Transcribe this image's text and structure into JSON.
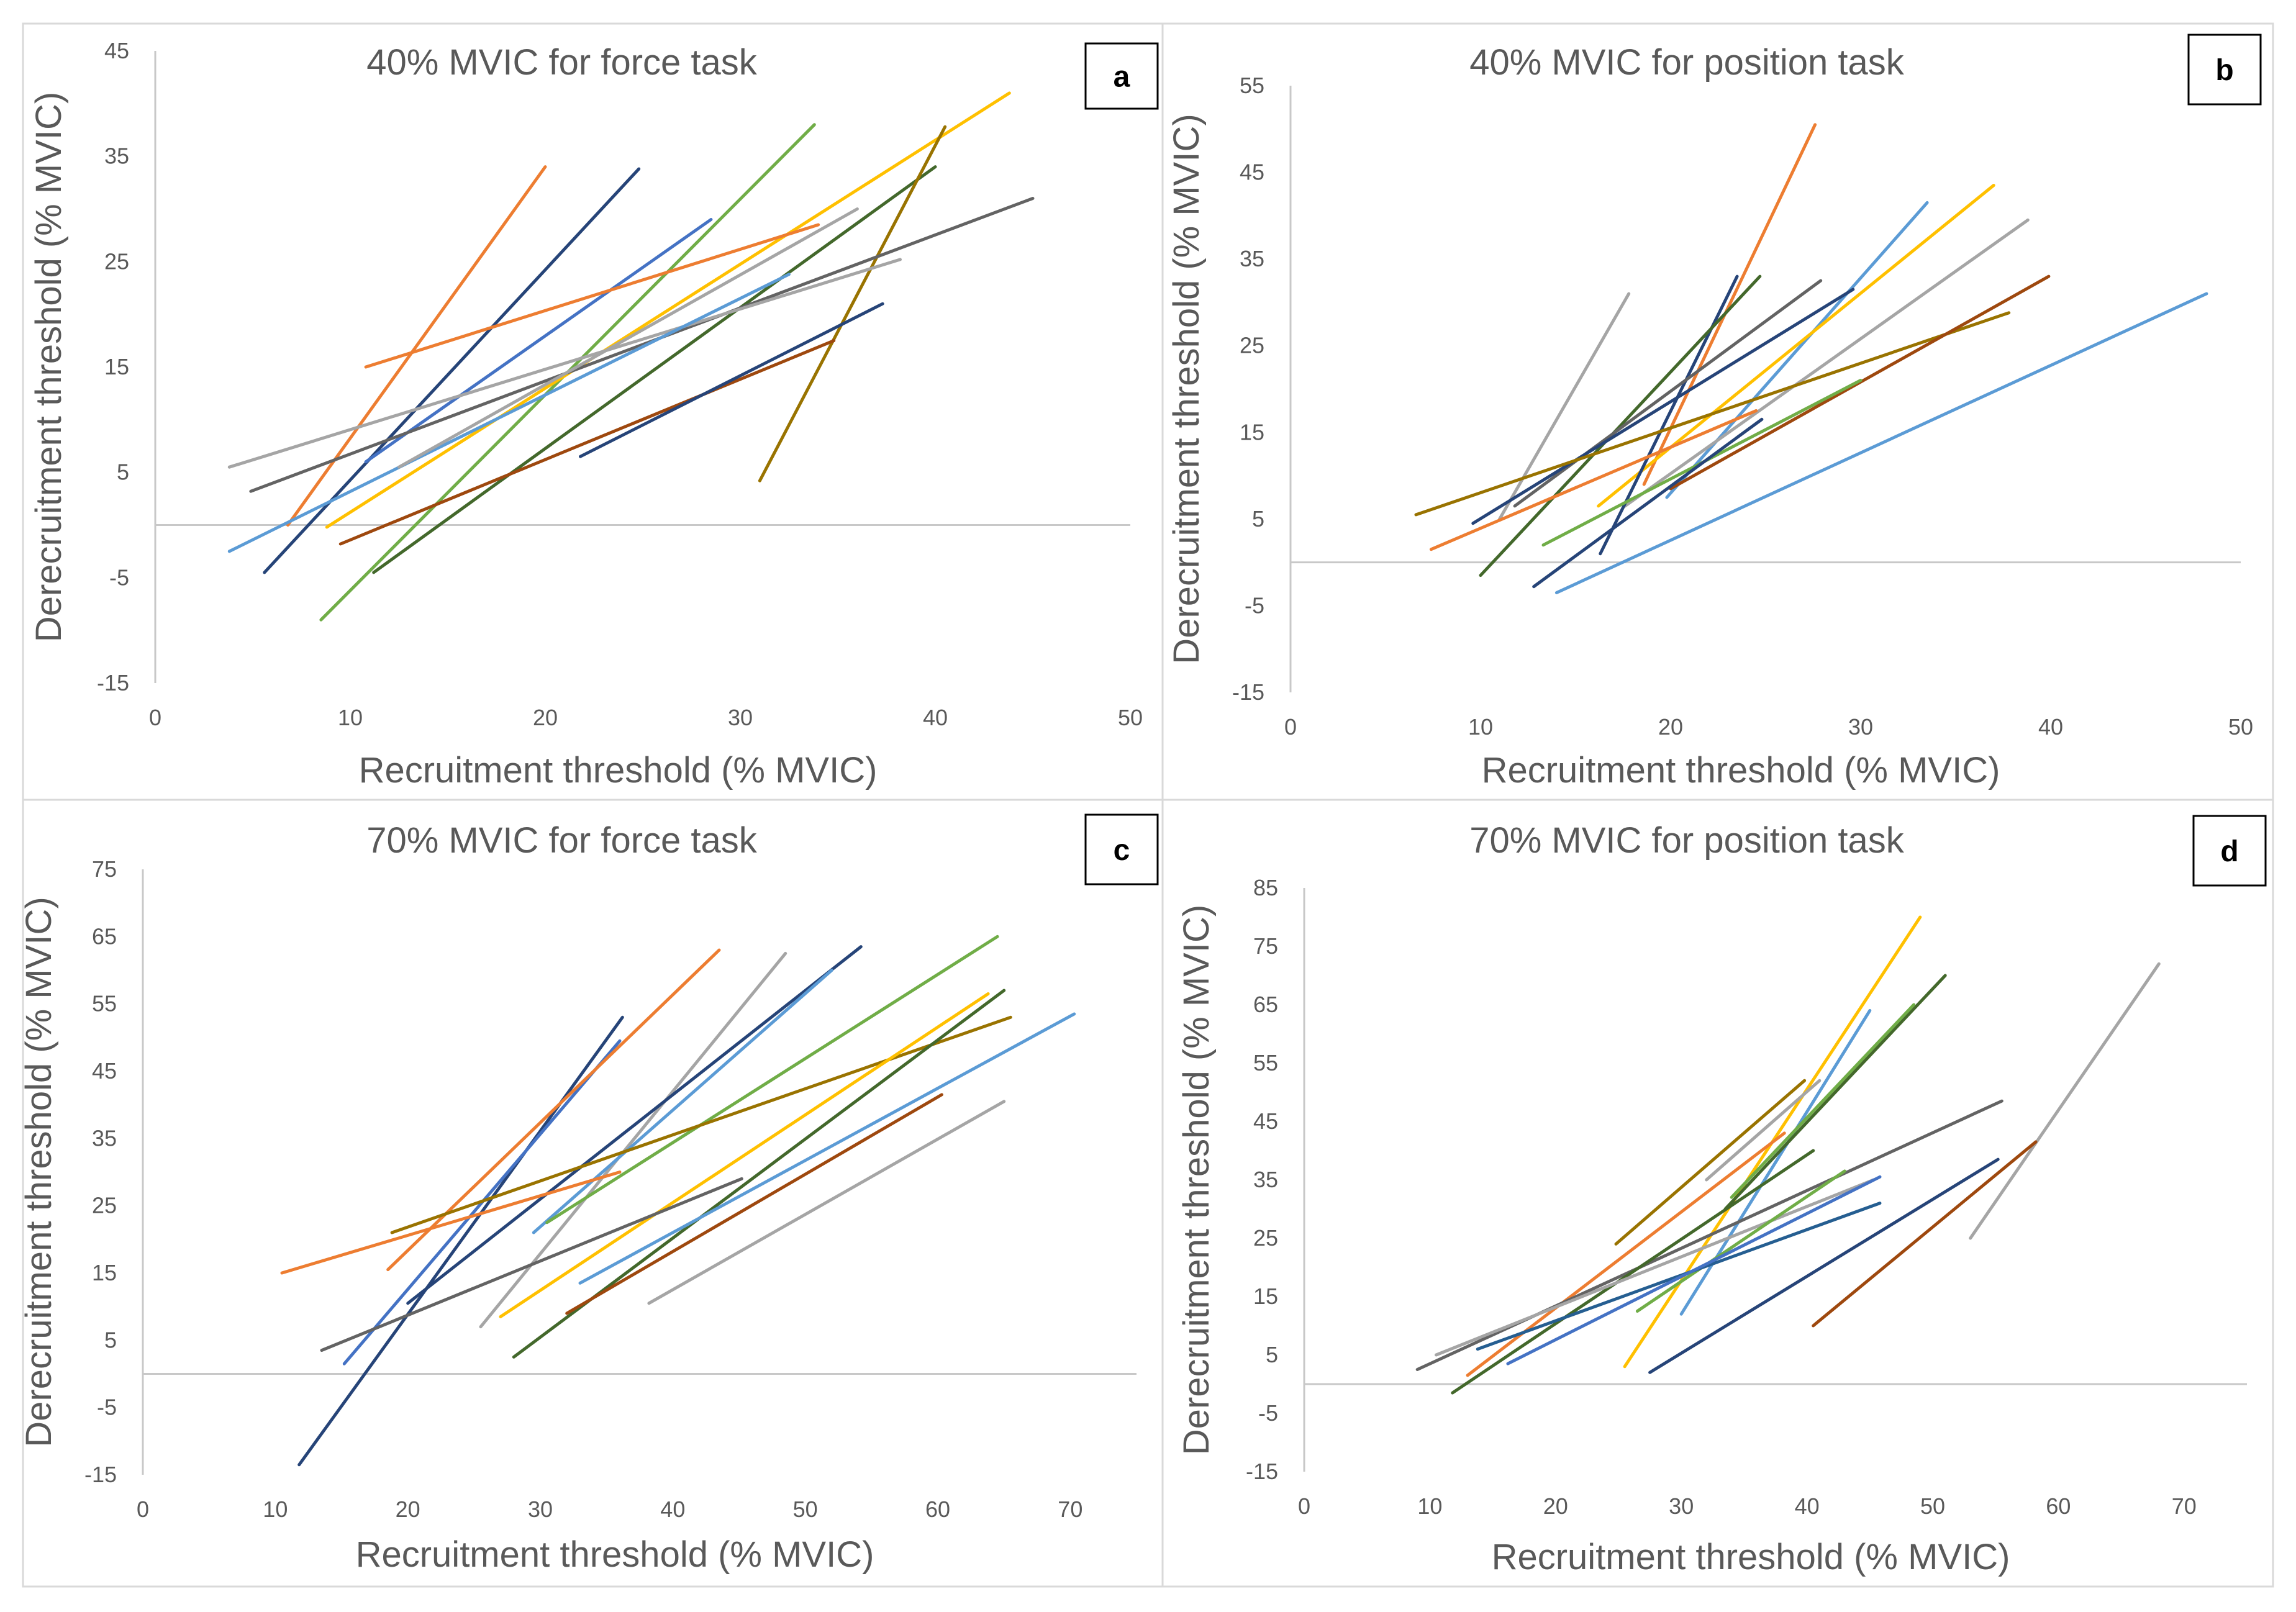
{
  "figure": {
    "colors": {
      "axis": "#c8c8c8",
      "text": "#595959",
      "border": "#d9d9d9",
      "palette": [
        "#4472c4",
        "#ed7d31",
        "#a5a5a5",
        "#ffc000",
        "#5b9bd5",
        "#70ad47",
        "#264478",
        "#9e480e",
        "#636363",
        "#997300",
        "#255e91",
        "#43682b"
      ]
    }
  },
  "chart_data": [
    {
      "panel": "a",
      "type": "line",
      "title": "40% MVIC for force task",
      "xlabel": "Recruitment threshold (% MVIC)",
      "ylabel": "Derecruitment threshold (% MVIC)",
      "xlim": [
        0,
        50
      ],
      "ylim": [
        -15,
        45
      ],
      "xticks": [
        0,
        10,
        20,
        30,
        40,
        50
      ],
      "yticks": [
        -15,
        -5,
        5,
        15,
        25,
        35,
        45
      ],
      "series": [
        {
          "color": "#ed7d31",
          "x": [
            6.8,
            20.0
          ],
          "y": [
            0.0,
            34.0
          ]
        },
        {
          "color": "#264478",
          "x": [
            5.6,
            24.8
          ],
          "y": [
            -4.5,
            33.8
          ]
        },
        {
          "color": "#4472c4",
          "x": [
            10.8,
            28.5
          ],
          "y": [
            6.0,
            29.0
          ]
        },
        {
          "color": "#70ad47",
          "x": [
            8.5,
            33.8
          ],
          "y": [
            -9.0,
            38.0
          ]
        },
        {
          "color": "#ffc000",
          "x": [
            8.8,
            43.8
          ],
          "y": [
            -0.2,
            41.0
          ]
        },
        {
          "color": "#43682b",
          "x": [
            11.2,
            40.0
          ],
          "y": [
            -4.5,
            34.0
          ]
        },
        {
          "color": "#997300",
          "x": [
            31.0,
            40.5
          ],
          "y": [
            4.2,
            37.8
          ]
        },
        {
          "color": "#ed7d31",
          "x": [
            10.8,
            34.0
          ],
          "y": [
            15.0,
            28.5
          ]
        },
        {
          "color": "#636363",
          "x": [
            4.9,
            45.0
          ],
          "y": [
            3.2,
            31.0
          ]
        },
        {
          "color": "#a5a5a5",
          "x": [
            3.8,
            38.2
          ],
          "y": [
            5.5,
            25.2
          ]
        },
        {
          "color": "#5b9bd5",
          "x": [
            3.8,
            32.5
          ],
          "y": [
            -2.5,
            23.8
          ]
        },
        {
          "color": "#a5a5a5",
          "x": [
            12.5,
            36.0
          ],
          "y": [
            5.5,
            30.0
          ]
        },
        {
          "color": "#9e480e",
          "x": [
            9.5,
            34.8
          ],
          "y": [
            -1.8,
            17.5
          ]
        },
        {
          "color": "#264478",
          "x": [
            21.8,
            37.3
          ],
          "y": [
            6.5,
            21.0
          ]
        }
      ]
    },
    {
      "panel": "b",
      "type": "line",
      "title": "40% MVIC for position task",
      "xlabel": "Recruitment threshold (% MVIC)",
      "ylabel": "Derecruitment threshold (% MVIC)",
      "xlim": [
        0,
        50
      ],
      "ylim": [
        -15,
        55
      ],
      "xticks": [
        0,
        10,
        20,
        30,
        40,
        50
      ],
      "yticks": [
        -15,
        -5,
        5,
        15,
        25,
        35,
        45,
        55
      ],
      "series": [
        {
          "color": "#a5a5a5",
          "x": [
            11.0,
            17.8
          ],
          "y": [
            5.0,
            31.0
          ]
        },
        {
          "color": "#ed7d31",
          "x": [
            18.6,
            27.6
          ],
          "y": [
            9.0,
            50.5
          ]
        },
        {
          "color": "#5b9bd5",
          "x": [
            19.8,
            33.5
          ],
          "y": [
            7.5,
            41.5
          ]
        },
        {
          "color": "#ffc000",
          "x": [
            16.2,
            37.0
          ],
          "y": [
            6.5,
            43.5
          ]
        },
        {
          "color": "#a5a5a5",
          "x": [
            17.6,
            38.8
          ],
          "y": [
            6.5,
            39.5
          ]
        },
        {
          "color": "#264478",
          "x": [
            16.3,
            23.5
          ],
          "y": [
            1.0,
            33.0
          ]
        },
        {
          "color": "#43682b",
          "x": [
            10.0,
            24.7
          ],
          "y": [
            -1.5,
            33.0
          ]
        },
        {
          "color": "#636363",
          "x": [
            11.8,
            27.9
          ],
          "y": [
            6.5,
            32.5
          ]
        },
        {
          "color": "#264478",
          "x": [
            9.6,
            29.6
          ],
          "y": [
            4.5,
            31.5
          ]
        },
        {
          "color": "#997300",
          "x": [
            6.6,
            37.8
          ],
          "y": [
            5.5,
            28.8
          ]
        },
        {
          "color": "#9e480e",
          "x": [
            20.0,
            39.9
          ],
          "y": [
            8.5,
            33.0
          ]
        },
        {
          "color": "#5b9bd5",
          "x": [
            14.0,
            48.2
          ],
          "y": [
            -3.5,
            31.0
          ]
        },
        {
          "color": "#70ad47",
          "x": [
            13.3,
            30.0
          ],
          "y": [
            2.0,
            21.0
          ]
        },
        {
          "color": "#ed7d31",
          "x": [
            7.4,
            24.5
          ],
          "y": [
            1.5,
            17.5
          ]
        },
        {
          "color": "#264478",
          "x": [
            12.8,
            24.8
          ],
          "y": [
            -2.8,
            16.5
          ]
        }
      ]
    },
    {
      "panel": "c",
      "type": "line",
      "title": "70% MVIC for force task",
      "xlabel": "Recruitment threshold (% MVIC)",
      "ylabel": "Derecruitment threshold (% MVIC)",
      "xlim": [
        0,
        75
      ],
      "ylim": [
        -15,
        75
      ],
      "xticks": [
        0,
        10,
        20,
        30,
        40,
        50,
        60,
        70
      ],
      "yticks": [
        -15,
        -5,
        5,
        15,
        25,
        35,
        45,
        55,
        65,
        75
      ],
      "series": [
        {
          "color": "#264478",
          "x": [
            11.8,
            36.2
          ],
          "y": [
            -13.5,
            53.0
          ]
        },
        {
          "color": "#4472c4",
          "x": [
            15.2,
            36.0
          ],
          "y": [
            1.5,
            49.5
          ]
        },
        {
          "color": "#ed7d31",
          "x": [
            18.5,
            43.5
          ],
          "y": [
            15.5,
            63.0
          ]
        },
        {
          "color": "#a5a5a5",
          "x": [
            25.5,
            48.5
          ],
          "y": [
            7.0,
            62.5
          ]
        },
        {
          "color": "#264478",
          "x": [
            20.0,
            54.2
          ],
          "y": [
            10.5,
            63.5
          ]
        },
        {
          "color": "#5b9bd5",
          "x": [
            29.5,
            52.0
          ],
          "y": [
            21.0,
            60.0
          ]
        },
        {
          "color": "#70ad47",
          "x": [
            30.5,
            64.5
          ],
          "y": [
            22.5,
            65.0
          ]
        },
        {
          "color": "#997300",
          "x": [
            18.8,
            65.5
          ],
          "y": [
            21.0,
            53.0
          ]
        },
        {
          "color": "#ed7d31",
          "x": [
            10.5,
            36.0
          ],
          "y": [
            15.0,
            30.0
          ]
        },
        {
          "color": "#ffc000",
          "x": [
            27.0,
            63.8
          ],
          "y": [
            8.5,
            56.5
          ]
        },
        {
          "color": "#43682b",
          "x": [
            28.0,
            65.0
          ],
          "y": [
            2.5,
            57.0
          ]
        },
        {
          "color": "#5b9bd5",
          "x": [
            33.0,
            70.3
          ],
          "y": [
            13.5,
            53.5
          ]
        },
        {
          "color": "#9e480e",
          "x": [
            32.0,
            60.3
          ],
          "y": [
            9.0,
            41.5
          ]
        },
        {
          "color": "#a5a5a5",
          "x": [
            38.2,
            65.0
          ],
          "y": [
            10.5,
            40.5
          ]
        },
        {
          "color": "#636363",
          "x": [
            13.5,
            45.2
          ],
          "y": [
            3.5,
            29.0
          ]
        }
      ]
    },
    {
      "panel": "d",
      "type": "line",
      "title": "70% MVIC for position task",
      "xlabel": "Recruitment threshold (% MVIC)",
      "ylabel": "Derecruitment threshold (% MVIC)",
      "xlim": [
        0,
        75
      ],
      "ylim": [
        -15,
        85
      ],
      "xticks": [
        0,
        10,
        20,
        30,
        40,
        50,
        60,
        70
      ],
      "yticks": [
        -15,
        -5,
        5,
        15,
        25,
        35,
        45,
        55,
        65,
        75,
        85
      ],
      "series": [
        {
          "color": "#ffc000",
          "x": [
            25.5,
            49.0
          ],
          "y": [
            3.0,
            80.0
          ]
        },
        {
          "color": "#5b9bd5",
          "x": [
            30.0,
            45.0
          ],
          "y": [
            12.0,
            64.0
          ]
        },
        {
          "color": "#43682b",
          "x": [
            33.5,
            51.0
          ],
          "y": [
            30.0,
            70.0
          ]
        },
        {
          "color": "#70ad47",
          "x": [
            34.0,
            48.5
          ],
          "y": [
            32.0,
            65.0
          ]
        },
        {
          "color": "#a5a5a5",
          "x": [
            32.0,
            41.0
          ],
          "y": [
            35.0,
            52.0
          ]
        },
        {
          "color": "#997300",
          "x": [
            24.8,
            39.8
          ],
          "y": [
            24.0,
            52.0
          ]
        },
        {
          "color": "#ed7d31",
          "x": [
            13.0,
            38.2
          ],
          "y": [
            1.5,
            43.0
          ]
        },
        {
          "color": "#a5a5a5",
          "x": [
            53.0,
            68.0
          ],
          "y": [
            25.0,
            72.0
          ]
        },
        {
          "color": "#636363",
          "x": [
            9.0,
            55.5
          ],
          "y": [
            2.5,
            48.5
          ]
        },
        {
          "color": "#43682b",
          "x": [
            11.8,
            40.5
          ],
          "y": [
            -1.5,
            40.0
          ]
        },
        {
          "color": "#a5a5a5",
          "x": [
            10.5,
            45.3
          ],
          "y": [
            5.0,
            35.0
          ]
        },
        {
          "color": "#70ad47",
          "x": [
            26.5,
            43.0
          ],
          "y": [
            12.5,
            36.5
          ]
        },
        {
          "color": "#255e91",
          "x": [
            13.8,
            45.8
          ],
          "y": [
            6.0,
            31.0
          ]
        },
        {
          "color": "#4472c4",
          "x": [
            16.2,
            45.8
          ],
          "y": [
            3.5,
            35.5
          ]
        },
        {
          "color": "#264478",
          "x": [
            27.5,
            55.2
          ],
          "y": [
            2.0,
            38.5
          ]
        },
        {
          "color": "#9e480e",
          "x": [
            40.5,
            58.2
          ],
          "y": [
            10.0,
            41.5
          ]
        }
      ]
    }
  ]
}
